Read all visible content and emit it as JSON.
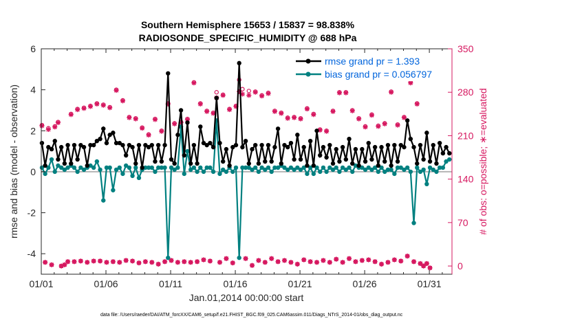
{
  "chart_data": {
    "type": "line",
    "title_line1": "Southern Hemisphere 15653 / 15837 = 98.838%",
    "title_line2": "RADIOSONDE_SPECIFIC_HUMIDITY @ 688 hPa",
    "xlabel": "Jan.01,2014 00:00:00 start",
    "ylabel_left": "rmse and bias (model - observation)",
    "ylabel_right": "# of obs: o=possible; ∗=evaluated",
    "x_ticks": [
      "01/01",
      "01/06",
      "01/11",
      "01/16",
      "01/21",
      "01/26",
      "01/31"
    ],
    "y_left_ticks": [
      "-4",
      "-2",
      "0",
      "2",
      "4",
      "6"
    ],
    "y_right_ticks": [
      "0",
      "70",
      "140",
      "210",
      "280",
      "350"
    ],
    "xlim_days": [
      0,
      31.75
    ],
    "ylim_left": [
      -5,
      6
    ],
    "ylim_right": [
      0,
      350
    ],
    "right_axis_origin_left_value": -4.6,
    "footnote": "data file: /Users/raeder/DAI/ATM_forcXX/CAM6_setup/f.e21.FHIST_BGC.f09_025.CAM6assim.011/Diags_NTrS_2014-01/obs_diag_output.nc",
    "colors": {
      "rmse": "#000000",
      "bias": "#008080",
      "obs": "#d6175f",
      "zero_line": "#b4b4b4"
    },
    "series": [
      {
        "name": "rmse grand pr = 1.393",
        "values": [
          1.4,
          0.3,
          1.2,
          1.1,
          1.5,
          0.6,
          1.2,
          0.4,
          1.3,
          0.4,
          1.3,
          0.6,
          1.3,
          1.2,
          0.3,
          1.3,
          1.3,
          1.5,
          1.6,
          2.1,
          1.4,
          1.8,
          1.9,
          1.4,
          1.4,
          1.3,
          0.8,
          1.3,
          1.2,
          0.4,
          1.3,
          0.2,
          1.3,
          1.2,
          1.3,
          0.5,
          1.3,
          0.5,
          1.3,
          4.8,
          0.6,
          0.4,
          1.8,
          3.0,
          0.8,
          2.4,
          0.4,
          1.3,
          0.4,
          2.2,
          1.4,
          1.3,
          1.4,
          1.2,
          3.6,
          1.4,
          0.5,
          1.1,
          0.3,
          1.2,
          1.3,
          5.3,
          1.2,
          1.5,
          0.4,
          1.1,
          1.3,
          0.4,
          1.3,
          0.5,
          1.3,
          0.5,
          1.2,
          2.1,
          0.4,
          1.3,
          1.2,
          1.4,
          0.6,
          1.8,
          0.6,
          1.2,
          0.3,
          1.5,
          0.3,
          2.0,
          0.8,
          1.2,
          0.7,
          1.3,
          0.4,
          1.1,
          0.5,
          1.2,
          0.6,
          1.6,
          0.4,
          1.1,
          0.3,
          1.1,
          0.5,
          1.4,
          0.6,
          1.2,
          0.3,
          1.2,
          0.5,
          1.3,
          0.3,
          1.3,
          0.5,
          1.3,
          1.2,
          2.5,
          1.6,
          1.2,
          0.4,
          1.3,
          0.6,
          1.9,
          0.5,
          1.3,
          0.4,
          1.4,
          0.9,
          1.2,
          0.9
        ]
      },
      {
        "name": "bias grand pr = 0.056797",
        "values": [
          0.2,
          -0.1,
          0.2,
          0.6,
          0.0,
          0.3,
          0.2,
          0.1,
          0.2,
          0.3,
          0.2,
          0.0,
          0.2,
          0.1,
          0.2,
          0.3,
          0.2,
          0.5,
          0.1,
          -1.4,
          0.2,
          0.2,
          -0.9,
          0.1,
          0.2,
          -0.1,
          0.3,
          0.2,
          -0.2,
          0.2,
          -0.3,
          0.1,
          0.2,
          0.2,
          0.2,
          0.0,
          0.2,
          0.2,
          0.2,
          -4.2,
          0.2,
          0.1,
          0.2,
          2.2,
          -0.1,
          1.0,
          0.1,
          0.2,
          0.0,
          0.2,
          0.0,
          0.2,
          0.2,
          0.0,
          2.5,
          -0.1,
          0.1,
          0.0,
          0.2,
          0.0,
          0.2,
          -4.2,
          0.2,
          0.2,
          0.2,
          0.1,
          0.2,
          0.0,
          0.2,
          0.1,
          0.2,
          0.0,
          0.2,
          0.2,
          0.3,
          0.2,
          0.1,
          0.2,
          0.1,
          0.2,
          0.1,
          0.2,
          -0.1,
          0.2,
          -0.1,
          0.2,
          0.0,
          0.2,
          0.0,
          0.2,
          0.1,
          0.2,
          0.0,
          0.2,
          0.1,
          0.2,
          0.0,
          0.3,
          0.2,
          0.2,
          0.1,
          0.2,
          0.1,
          0.2,
          0.0,
          0.2,
          0.0,
          0.1,
          0.1,
          -0.1,
          0.2,
          0.2,
          0.1,
          0.2,
          0.0,
          -2.5,
          0.2,
          0.0,
          0.1,
          -0.6,
          0.2,
          0.1,
          0.0,
          0.2,
          0.2,
          0.5,
          0.6
        ]
      },
      {
        "name": "obs_possible",
        "values": [
          227,
          6,
          222,
          2,
          225,
          232,
          0,
          2,
          7,
          245,
          7,
          253,
          8,
          255,
          6,
          258,
          8,
          262,
          8,
          260,
          6,
          256,
          7,
          284,
          6,
          267,
          9,
          240,
          8,
          238,
          5,
          223,
          7,
          212,
          6,
          237,
          3,
          218,
          7,
          262,
          9,
          230,
          6,
          232,
          7,
          237,
          6,
          296,
          7,
          262,
          10,
          250,
          8,
          247,
          280,
          6,
          276,
          12,
          253,
          5,
          258,
          300,
          285,
          12,
          282,
          1,
          281,
          9,
          275,
          6,
          279,
          12,
          250,
          7,
          247,
          9,
          239,
          6,
          240,
          3,
          238,
          10,
          254,
          7,
          245,
          6,
          220,
          9,
          218,
          6,
          250,
          11,
          280,
          6,
          280,
          12,
          251,
          7,
          238,
          9,
          225,
          10,
          244,
          7,
          226,
          3,
          230,
          6,
          281,
          10,
          228,
          8,
          240,
          16,
          296,
          7,
          262,
          4,
          0,
          4,
          -3
        ]
      },
      {
        "name": "obs_evaluated",
        "values": [
          226,
          6,
          220,
          2,
          224,
          231,
          0,
          2,
          7,
          244,
          7,
          252,
          8,
          254,
          6,
          257,
          8,
          261,
          8,
          259,
          6,
          255,
          7,
          283,
          6,
          266,
          9,
          239,
          8,
          237,
          5,
          222,
          7,
          211,
          6,
          236,
          3,
          217,
          7,
          261,
          9,
          229,
          6,
          231,
          7,
          236,
          6,
          295,
          7,
          261,
          10,
          249,
          8,
          246,
          271,
          6,
          275,
          12,
          252,
          5,
          257,
          281,
          277,
          12,
          275,
          1,
          280,
          9,
          274,
          6,
          278,
          12,
          249,
          7,
          246,
          9,
          238,
          6,
          239,
          3,
          237,
          10,
          253,
          7,
          244,
          6,
          219,
          9,
          217,
          6,
          249,
          11,
          279,
          6,
          279,
          12,
          250,
          7,
          237,
          9,
          224,
          10,
          243,
          7,
          225,
          3,
          229,
          6,
          280,
          10,
          227,
          8,
          239,
          16,
          295,
          7,
          261,
          4,
          0,
          4,
          -3
        ]
      }
    ],
    "legend": [
      "rmse grand pr = 1.393",
      "bias grand pr = 0.056797"
    ],
    "legend_placement": "top-right"
  }
}
